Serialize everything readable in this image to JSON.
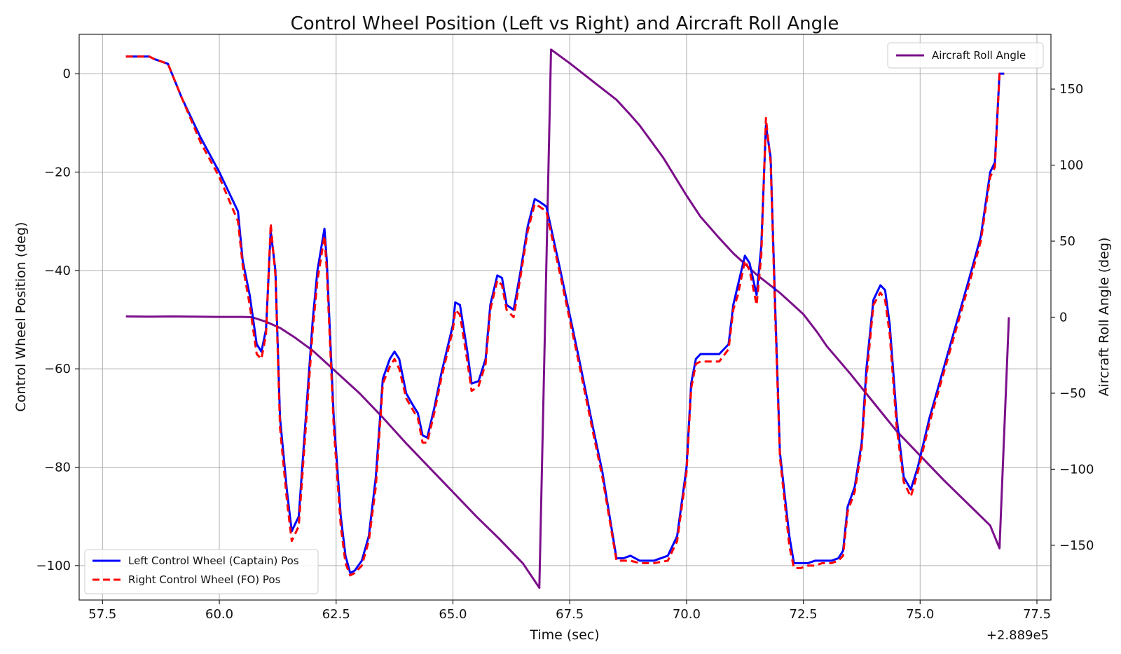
{
  "chart_data": {
    "type": "line",
    "title": "Control Wheel Position (Left vs Right) and Aircraft Roll Angle",
    "xlabel": "Time (sec)",
    "x_offset_label": "+2.889e5",
    "ylabel_left": "Control Wheel Position (deg)",
    "ylabel_right": "Aircraft Roll Angle (deg)",
    "xlim": [
      57.0,
      77.8
    ],
    "ylim_left": [
      -107,
      8
    ],
    "ylim_right": [
      -186,
      186
    ],
    "xticks": [
      "57.5",
      "60.0",
      "62.5",
      "65.0",
      "67.5",
      "70.0",
      "72.5",
      "75.0",
      "77.5"
    ],
    "xtick_values": [
      57.5,
      60.0,
      62.5,
      65.0,
      67.5,
      70.0,
      72.5,
      75.0,
      77.5
    ],
    "yticks_left": [
      "0",
      "−20",
      "−40",
      "−60",
      "−80",
      "−100"
    ],
    "ytick_values_left": [
      0,
      -20,
      -40,
      -60,
      -80,
      -100
    ],
    "yticks_right": [
      "150",
      "100",
      "50",
      "0",
      "−50",
      "−100",
      "−150"
    ],
    "ytick_values_right": [
      150,
      100,
      50,
      0,
      -50,
      -100,
      -150
    ],
    "grid": true,
    "legend_left": {
      "placement": "lower-left"
    },
    "legend_right": {
      "placement": "upper-right"
    },
    "series": [
      {
        "name": "Left Control Wheel (Captain) Pos",
        "axis": "left",
        "color": "#0000ff",
        "style": "solid",
        "points": [
          [
            58.0,
            3.5
          ],
          [
            58.5,
            3.5
          ],
          [
            58.6,
            3
          ],
          [
            58.9,
            2
          ],
          [
            59.2,
            -5
          ],
          [
            59.6,
            -13
          ],
          [
            60.0,
            -20
          ],
          [
            60.4,
            -28
          ],
          [
            60.5,
            -38
          ],
          [
            60.65,
            -45
          ],
          [
            60.8,
            -55
          ],
          [
            60.9,
            -56.5
          ],
          [
            61.0,
            -52
          ],
          [
            61.1,
            -32
          ],
          [
            61.2,
            -40
          ],
          [
            61.3,
            -70
          ],
          [
            61.45,
            -85
          ],
          [
            61.55,
            -93
          ],
          [
            61.7,
            -90
          ],
          [
            61.85,
            -70
          ],
          [
            62.0,
            -50
          ],
          [
            62.1,
            -40
          ],
          [
            62.25,
            -31.5
          ],
          [
            62.3,
            -38
          ],
          [
            62.45,
            -70
          ],
          [
            62.6,
            -90
          ],
          [
            62.7,
            -98
          ],
          [
            62.8,
            -101.5
          ],
          [
            62.9,
            -101
          ],
          [
            63.05,
            -99
          ],
          [
            63.2,
            -94
          ],
          [
            63.35,
            -82
          ],
          [
            63.5,
            -62
          ],
          [
            63.65,
            -58
          ],
          [
            63.75,
            -56.5
          ],
          [
            63.85,
            -58
          ],
          [
            64.0,
            -65
          ],
          [
            64.15,
            -67.5
          ],
          [
            64.25,
            -69
          ],
          [
            64.35,
            -73.5
          ],
          [
            64.45,
            -74
          ],
          [
            64.6,
            -68
          ],
          [
            64.75,
            -61
          ],
          [
            64.85,
            -57
          ],
          [
            65.0,
            -51
          ],
          [
            65.05,
            -46.5
          ],
          [
            65.15,
            -47
          ],
          [
            65.3,
            -56
          ],
          [
            65.4,
            -63
          ],
          [
            65.55,
            -62.5
          ],
          [
            65.7,
            -58
          ],
          [
            65.8,
            -47
          ],
          [
            65.95,
            -41
          ],
          [
            66.05,
            -41.5
          ],
          [
            66.15,
            -47
          ],
          [
            66.3,
            -48
          ],
          [
            66.45,
            -40
          ],
          [
            66.6,
            -31
          ],
          [
            66.75,
            -25.5
          ],
          [
            66.85,
            -26
          ],
          [
            67.0,
            -27
          ],
          [
            67.3,
            -40
          ],
          [
            67.7,
            -58
          ],
          [
            68.0,
            -72
          ],
          [
            68.2,
            -81
          ],
          [
            68.5,
            -98.5
          ],
          [
            68.65,
            -98.5
          ],
          [
            68.8,
            -98
          ],
          [
            69.0,
            -99
          ],
          [
            69.3,
            -99
          ],
          [
            69.6,
            -98
          ],
          [
            69.8,
            -94
          ],
          [
            70.0,
            -80
          ],
          [
            70.1,
            -63
          ],
          [
            70.2,
            -58
          ],
          [
            70.3,
            -57
          ],
          [
            70.5,
            -57
          ],
          [
            70.7,
            -57
          ],
          [
            70.9,
            -55
          ],
          [
            71.0,
            -47
          ],
          [
            71.1,
            -43
          ],
          [
            71.25,
            -37
          ],
          [
            71.35,
            -38.5
          ],
          [
            71.5,
            -45
          ],
          [
            71.6,
            -35
          ],
          [
            71.7,
            -10.5
          ],
          [
            71.8,
            -17
          ],
          [
            71.9,
            -48
          ],
          [
            72.0,
            -77
          ],
          [
            72.2,
            -94
          ],
          [
            72.3,
            -99.5
          ],
          [
            72.45,
            -99.5
          ],
          [
            72.6,
            -99.5
          ],
          [
            72.75,
            -99
          ],
          [
            72.9,
            -99
          ],
          [
            73.1,
            -99
          ],
          [
            73.25,
            -98.5
          ],
          [
            73.35,
            -97
          ],
          [
            73.45,
            -88
          ],
          [
            73.6,
            -84
          ],
          [
            73.75,
            -75
          ],
          [
            73.85,
            -60
          ],
          [
            74.0,
            -46
          ],
          [
            74.15,
            -43
          ],
          [
            74.25,
            -44
          ],
          [
            74.35,
            -51
          ],
          [
            74.5,
            -70
          ],
          [
            74.65,
            -82
          ],
          [
            74.8,
            -84.5
          ],
          [
            74.95,
            -80
          ],
          [
            75.2,
            -70
          ],
          [
            75.5,
            -60
          ],
          [
            75.8,
            -50
          ],
          [
            76.1,
            -40
          ],
          [
            76.3,
            -33
          ],
          [
            76.5,
            -20
          ],
          [
            76.6,
            -18
          ],
          [
            76.7,
            0
          ],
          [
            76.8,
            0
          ]
        ]
      },
      {
        "name": "Right Control Wheel (FO) Pos",
        "axis": "left",
        "color": "#ff0000",
        "style": "dashed",
        "points": [
          [
            58.0,
            3.5
          ],
          [
            58.5,
            3.5
          ],
          [
            58.6,
            3
          ],
          [
            58.9,
            2
          ],
          [
            59.2,
            -5
          ],
          [
            59.6,
            -14
          ],
          [
            60.0,
            -21
          ],
          [
            60.4,
            -30
          ],
          [
            60.5,
            -39
          ],
          [
            60.65,
            -47
          ],
          [
            60.8,
            -57
          ],
          [
            60.9,
            -58
          ],
          [
            61.0,
            -53
          ],
          [
            61.1,
            -30.5
          ],
          [
            61.2,
            -41
          ],
          [
            61.3,
            -72
          ],
          [
            61.45,
            -87
          ],
          [
            61.55,
            -95
          ],
          [
            61.7,
            -92
          ],
          [
            61.85,
            -72
          ],
          [
            62.0,
            -52
          ],
          [
            62.1,
            -42
          ],
          [
            62.25,
            -33
          ],
          [
            62.3,
            -40
          ],
          [
            62.45,
            -72
          ],
          [
            62.6,
            -92
          ],
          [
            62.7,
            -99.5
          ],
          [
            62.8,
            -102
          ],
          [
            62.9,
            -101.5
          ],
          [
            63.05,
            -100
          ],
          [
            63.2,
            -95
          ],
          [
            63.35,
            -84
          ],
          [
            63.5,
            -63
          ],
          [
            63.65,
            -59.5
          ],
          [
            63.75,
            -58
          ],
          [
            63.85,
            -60
          ],
          [
            64.0,
            -66
          ],
          [
            64.15,
            -68.5
          ],
          [
            64.25,
            -70
          ],
          [
            64.35,
            -75
          ],
          [
            64.45,
            -75
          ],
          [
            64.6,
            -69
          ],
          [
            64.75,
            -62
          ],
          [
            64.85,
            -58
          ],
          [
            65.0,
            -52
          ],
          [
            65.05,
            -48
          ],
          [
            65.15,
            -49
          ],
          [
            65.3,
            -58
          ],
          [
            65.4,
            -64.5
          ],
          [
            65.55,
            -63.5
          ],
          [
            65.7,
            -59
          ],
          [
            65.8,
            -48
          ],
          [
            65.95,
            -42
          ],
          [
            66.05,
            -43
          ],
          [
            66.15,
            -48
          ],
          [
            66.3,
            -49.5
          ],
          [
            66.45,
            -41
          ],
          [
            66.6,
            -32
          ],
          [
            66.75,
            -26.5
          ],
          [
            66.85,
            -27
          ],
          [
            67.0,
            -28
          ],
          [
            67.3,
            -41
          ],
          [
            67.7,
            -59
          ],
          [
            68.0,
            -73
          ],
          [
            68.2,
            -82
          ],
          [
            68.5,
            -99
          ],
          [
            68.65,
            -99
          ],
          [
            68.8,
            -99
          ],
          [
            69.0,
            -99.5
          ],
          [
            69.3,
            -99.5
          ],
          [
            69.6,
            -99
          ],
          [
            69.8,
            -95
          ],
          [
            70.0,
            -81
          ],
          [
            70.1,
            -64
          ],
          [
            70.2,
            -59
          ],
          [
            70.3,
            -58.5
          ],
          [
            70.5,
            -58.5
          ],
          [
            70.7,
            -58.5
          ],
          [
            70.9,
            -56
          ],
          [
            71.0,
            -48
          ],
          [
            71.1,
            -45
          ],
          [
            71.25,
            -38
          ],
          [
            71.35,
            -40
          ],
          [
            71.5,
            -47
          ],
          [
            71.6,
            -37
          ],
          [
            71.7,
            -9
          ],
          [
            71.8,
            -18
          ],
          [
            71.9,
            -50
          ],
          [
            72.0,
            -78
          ],
          [
            72.2,
            -96
          ],
          [
            72.3,
            -100.5
          ],
          [
            72.45,
            -100.5
          ],
          [
            72.6,
            -100
          ],
          [
            72.75,
            -100
          ],
          [
            72.9,
            -99.5
          ],
          [
            73.1,
            -99.5
          ],
          [
            73.25,
            -99
          ],
          [
            73.35,
            -98
          ],
          [
            73.45,
            -89
          ],
          [
            73.6,
            -85
          ],
          [
            73.75,
            -76
          ],
          [
            73.85,
            -62
          ],
          [
            74.0,
            -47
          ],
          [
            74.15,
            -44.5
          ],
          [
            74.25,
            -46
          ],
          [
            74.35,
            -53
          ],
          [
            74.5,
            -72
          ],
          [
            74.65,
            -83
          ],
          [
            74.8,
            -86
          ],
          [
            74.95,
            -81
          ],
          [
            75.2,
            -71
          ],
          [
            75.5,
            -61
          ],
          [
            75.8,
            -51
          ],
          [
            76.1,
            -41
          ],
          [
            76.3,
            -34
          ],
          [
            76.5,
            -21
          ],
          [
            76.6,
            -19
          ],
          [
            76.7,
            0
          ],
          [
            76.8,
            0
          ]
        ]
      },
      {
        "name": "Aircraft Roll Angle",
        "axis": "right",
        "color": "#7b0f8a",
        "style": "solid",
        "points": [
          [
            58.0,
            0.5
          ],
          [
            58.5,
            0.3
          ],
          [
            59.0,
            0.5
          ],
          [
            59.5,
            0.3
          ],
          [
            60.0,
            0.2
          ],
          [
            60.5,
            0.2
          ],
          [
            60.7,
            0
          ],
          [
            61.0,
            -3
          ],
          [
            61.3,
            -7
          ],
          [
            61.6,
            -13
          ],
          [
            62.0,
            -22
          ],
          [
            62.5,
            -36
          ],
          [
            63.0,
            -50
          ],
          [
            63.5,
            -66
          ],
          [
            64.0,
            -83
          ],
          [
            64.5,
            -99
          ],
          [
            65.0,
            -115
          ],
          [
            65.5,
            -131
          ],
          [
            66.0,
            -146
          ],
          [
            66.5,
            -162
          ],
          [
            66.85,
            -178
          ],
          [
            67.1,
            176
          ],
          [
            67.5,
            167
          ],
          [
            68.0,
            155
          ],
          [
            68.5,
            143
          ],
          [
            68.8,
            133
          ],
          [
            69.0,
            126
          ],
          [
            69.5,
            105
          ],
          [
            70.0,
            80
          ],
          [
            70.3,
            66
          ],
          [
            70.7,
            52
          ],
          [
            71.0,
            42
          ],
          [
            71.5,
            28
          ],
          [
            72.0,
            16
          ],
          [
            72.5,
            2
          ],
          [
            72.8,
            -10
          ],
          [
            73.0,
            -19
          ],
          [
            73.5,
            -37
          ],
          [
            74.0,
            -56
          ],
          [
            74.5,
            -75
          ],
          [
            75.0,
            -91
          ],
          [
            75.5,
            -107
          ],
          [
            76.0,
            -122
          ],
          [
            76.5,
            -137
          ],
          [
            76.7,
            -152
          ],
          [
            76.9,
            0
          ]
        ]
      }
    ]
  }
}
